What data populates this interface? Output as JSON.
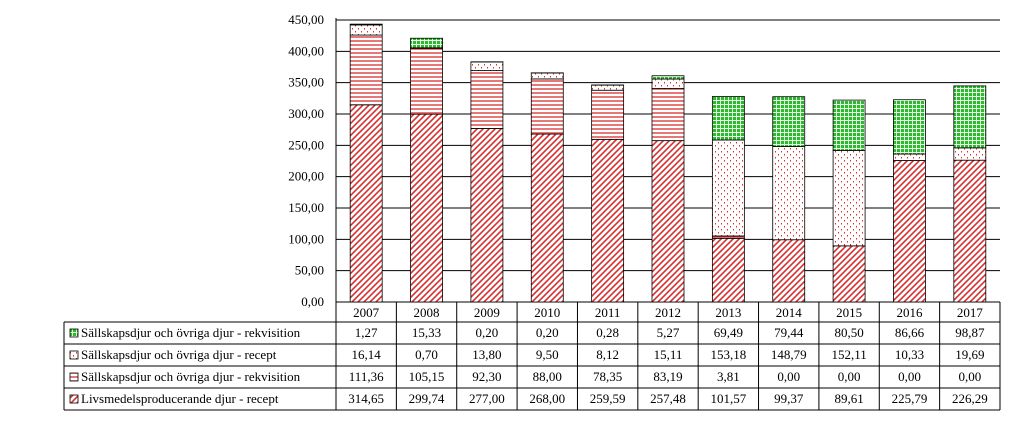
{
  "chart_data": {
    "type": "bar",
    "stacked": true,
    "categories": [
      "2007",
      "2008",
      "2009",
      "2010",
      "2011",
      "2012",
      "2013",
      "2014",
      "2015",
      "2016",
      "2017"
    ],
    "ylim": [
      0,
      450
    ],
    "yticks": [
      "0,00",
      "50,00",
      "100,00",
      "150,00",
      "200,00",
      "250,00",
      "300,00",
      "350,00",
      "400,00",
      "450,00"
    ],
    "grid": true,
    "legend": "data-table",
    "series": [
      {
        "name": "Livsmedelsproducerande djur - recept",
        "pattern": "diagonal",
        "color": "#e03c3c",
        "values": [
          314.65,
          299.74,
          277.0,
          268.0,
          259.59,
          257.48,
          101.57,
          99.37,
          89.61,
          225.79,
          226.29
        ],
        "labels": [
          "314,65",
          "299,74",
          "277,00",
          "268,00",
          "259,59",
          "257,48",
          "101,57",
          "99,37",
          "89,61",
          "225,79",
          "226,29"
        ]
      },
      {
        "name": "Sällskapsdjur och övriga djur - rekvisition",
        "pattern": "horizontal",
        "color": "#e03c3c",
        "values": [
          111.36,
          105.15,
          92.3,
          88.0,
          78.35,
          83.19,
          3.81,
          0.0,
          0.0,
          0.0,
          0.0
        ],
        "labels": [
          "111,36",
          "105,15",
          "92,30",
          "88,00",
          "78,35",
          "83,19",
          "3,81",
          "0,00",
          "0,00",
          "0,00",
          "0,00"
        ]
      },
      {
        "name": "Sällskapsdjur och övriga djur - recept",
        "pattern": "dots",
        "color": "#e03c3c",
        "values": [
          16.14,
          0.7,
          13.8,
          9.5,
          8.12,
          15.11,
          153.18,
          148.79,
          152.11,
          10.33,
          19.69
        ],
        "labels": [
          "16,14",
          "0,70",
          "13,80",
          "9,50",
          "8,12",
          "15,11",
          "153,18",
          "148,79",
          "152,11",
          "10,33",
          "19,69"
        ]
      },
      {
        "name": "Sällskapsdjur och övriga djur - rekvisition",
        "pattern": "grid",
        "color": "#22b522",
        "values": [
          1.27,
          15.33,
          0.2,
          0.2,
          0.28,
          5.27,
          69.49,
          79.44,
          80.5,
          86.66,
          98.87
        ],
        "labels": [
          "1,27",
          "15,33",
          "0,20",
          "0,20",
          "0,28",
          "5,27",
          "69,49",
          "79,44",
          "80,50",
          "86,66",
          "98,87"
        ]
      }
    ],
    "table_row_order": [
      3,
      2,
      1,
      0
    ]
  }
}
